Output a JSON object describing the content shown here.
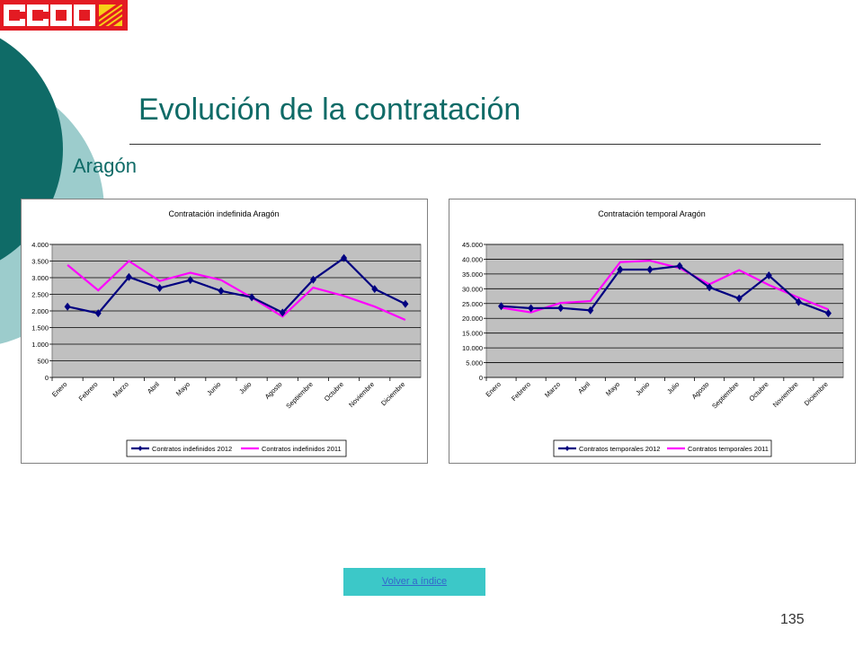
{
  "brand": {
    "logo_text": "CCOO"
  },
  "slide": {
    "title": "Evolución de la contratación",
    "subtitle": "Aragón",
    "nav_button": "Volver a índice",
    "page_number": "135"
  },
  "colors": {
    "series_2012": "#000080",
    "series_2011": "#ff00ff",
    "plot_bg": "#c0c0c0",
    "teal": "#0f6b67",
    "button_bg": "#3cc8c8",
    "logo_red": "#e31b23"
  },
  "chart_data": [
    {
      "type": "line",
      "title": "Contratación indefinida Aragón",
      "categories": [
        "Enero",
        "Febrero",
        "Marzo",
        "Abril",
        "Mayo",
        "Junio",
        "Julio",
        "Agosto",
        "Septiembre",
        "Octubre",
        "Noviembre",
        "Diciembre"
      ],
      "ylim": [
        0,
        4000
      ],
      "yticks": [
        0,
        500,
        1000,
        1500,
        2000,
        2500,
        3000,
        3500,
        4000
      ],
      "ytick_labels": [
        "0",
        "500",
        "1.000",
        "1.500",
        "2.000",
        "2.500",
        "3.000",
        "3.500",
        "4.000"
      ],
      "grid": true,
      "legend": "bottom",
      "series": [
        {
          "name": "Contratos indefinidos 2012",
          "values": [
            2130,
            1930,
            3020,
            2690,
            2930,
            2600,
            2410,
            1950,
            2940,
            3590,
            2660,
            2210
          ]
        },
        {
          "name": "Contratos indefinidos 2011",
          "values": [
            3380,
            2620,
            3500,
            2900,
            3150,
            2930,
            2400,
            1830,
            2700,
            2450,
            2130,
            1730
          ]
        }
      ]
    },
    {
      "type": "line",
      "title": "Contratación temporal Aragón",
      "categories": [
        "Enero",
        "Febrero",
        "Marzo",
        "Abril",
        "Mayo",
        "Junio",
        "Julio",
        "Agosto",
        "Septiembre",
        "Octubre",
        "Noviembre",
        "Diciembre"
      ],
      "ylim": [
        0,
        45000
      ],
      "yticks": [
        0,
        5000,
        10000,
        15000,
        20000,
        25000,
        30000,
        35000,
        40000,
        45000
      ],
      "ytick_labels": [
        "0",
        "5.000",
        "10.000",
        "15.000",
        "20.000",
        "25.000",
        "30.000",
        "35.000",
        "40.000",
        "45.000"
      ],
      "grid": true,
      "legend": "bottom",
      "series": [
        {
          "name": "Contratos temporales 2012",
          "values": [
            24100,
            23400,
            23500,
            22700,
            36500,
            36500,
            37700,
            30500,
            26700,
            34500,
            25500,
            21700
          ]
        },
        {
          "name": "Contratos temporales 2011",
          "values": [
            23600,
            22000,
            25200,
            25800,
            39000,
            39500,
            37000,
            31500,
            36300,
            31300,
            27000,
            23000
          ]
        }
      ]
    }
  ]
}
